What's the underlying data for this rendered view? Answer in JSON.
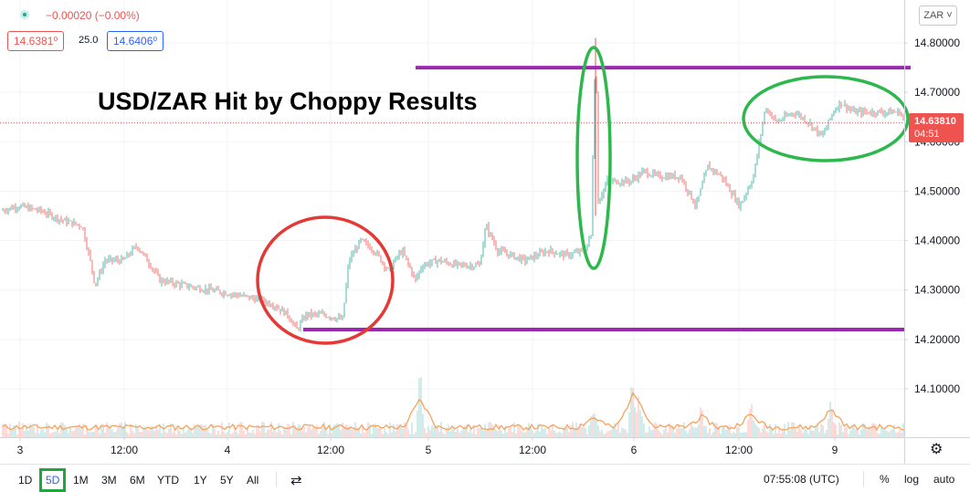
{
  "header": {
    "change": "−0.00020 (−0.00%)",
    "bid": "14.6381⁰",
    "spread": "25.0",
    "ask": "14.6406⁰"
  },
  "overlay": {
    "title": "USD/ZAR Hit by Choppy Results"
  },
  "price_scale": {
    "currency": "ZAR ˅",
    "last_price": "14.63810",
    "countdown": "04:51"
  },
  "toolbar": {
    "timeframes": [
      "1D",
      "5D",
      "1M",
      "3M",
      "6M",
      "YTD",
      "1Y",
      "5Y",
      "All"
    ],
    "active": "5D",
    "clock": "07:55:08 (UTC)",
    "percent": "%",
    "log": "log",
    "auto": "auto"
  },
  "colors": {
    "up": "#26a69a",
    "down": "#ef5350",
    "volume_ma": "#f7a35c",
    "annotation_line": "#9c27b0",
    "circle_red": "#e53935",
    "circle_green": "#2db84d",
    "active_outline": "#1ea83c"
  },
  "chart_data": {
    "type": "candlestick",
    "y_range": [
      14.0,
      14.85
    ],
    "y_ticks": [
      "14.80000",
      "14.70000",
      "14.60000",
      "14.50000",
      "14.40000",
      "14.30000",
      "14.20000",
      "14.10000"
    ],
    "x_ticks": [
      "3",
      "12:00",
      "4",
      "12:00",
      "5",
      "12:00",
      "6",
      "12:00",
      "9"
    ],
    "price_path": [
      [
        0,
        14.46
      ],
      [
        20,
        14.47
      ],
      [
        45,
        14.46
      ],
      [
        70,
        14.44
      ],
      [
        90,
        14.43
      ],
      [
        100,
        14.35
      ],
      [
        104,
        14.31
      ],
      [
        115,
        14.36
      ],
      [
        135,
        14.36
      ],
      [
        150,
        14.39
      ],
      [
        165,
        14.35
      ],
      [
        175,
        14.32
      ],
      [
        200,
        14.31
      ],
      [
        230,
        14.3
      ],
      [
        260,
        14.29
      ],
      [
        285,
        14.28
      ],
      [
        300,
        14.27
      ],
      [
        315,
        14.25
      ],
      [
        325,
        14.22
      ],
      [
        335,
        14.25
      ],
      [
        355,
        14.25
      ],
      [
        375,
        14.24
      ],
      [
        382,
        14.36
      ],
      [
        395,
        14.4
      ],
      [
        410,
        14.38
      ],
      [
        425,
        14.34
      ],
      [
        440,
        14.38
      ],
      [
        455,
        14.32
      ],
      [
        462,
        14.35
      ],
      [
        480,
        14.36
      ],
      [
        500,
        14.35
      ],
      [
        525,
        14.35
      ],
      [
        532,
        14.43
      ],
      [
        545,
        14.38
      ],
      [
        575,
        14.36
      ],
      [
        600,
        14.38
      ],
      [
        620,
        14.37
      ],
      [
        640,
        14.38
      ],
      [
        647,
        14.41
      ],
      [
        652,
        14.81
      ],
      [
        655,
        14.48
      ],
      [
        665,
        14.52
      ],
      [
        690,
        14.52
      ],
      [
        705,
        14.54
      ],
      [
        720,
        14.53
      ],
      [
        745,
        14.53
      ],
      [
        762,
        14.47
      ],
      [
        775,
        14.55
      ],
      [
        790,
        14.53
      ],
      [
        810,
        14.47
      ],
      [
        825,
        14.53
      ],
      [
        838,
        14.67
      ],
      [
        850,
        14.64
      ],
      [
        870,
        14.66
      ],
      [
        885,
        14.64
      ],
      [
        900,
        14.61
      ],
      [
        912,
        14.66
      ],
      [
        920,
        14.68
      ],
      [
        935,
        14.66
      ],
      [
        960,
        14.66
      ],
      [
        985,
        14.66
      ],
      [
        992,
        14.6381
      ]
    ],
    "volume_spikes": [
      [
        460,
        0.55
      ],
      [
        650,
        0.2
      ],
      [
        692,
        0.48
      ],
      [
        700,
        0.3
      ],
      [
        768,
        0.2
      ],
      [
        822,
        0.25
      ],
      [
        910,
        0.35
      ]
    ],
    "annotations": {
      "resistance": 14.75,
      "support": 14.22,
      "last_price": 14.6381
    }
  }
}
